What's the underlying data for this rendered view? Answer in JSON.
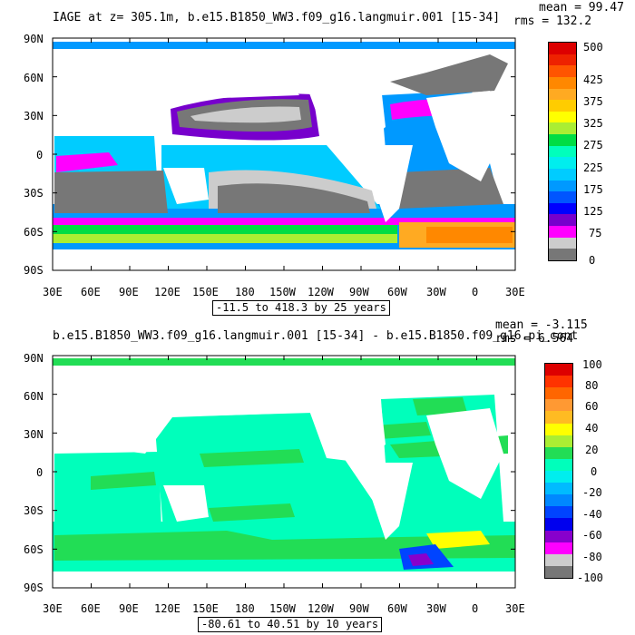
{
  "panel1": {
    "title": "IAGE at z= 305.1m, b.e15.B1850_WW3.f09_g16.langmuir.001 [15-34]",
    "mean_text": "mean = 99.47",
    "rms_text": "rms = 132.2",
    "range_text": "-11.5 to 418.3 by 25 years",
    "lat_labels": [
      "90N",
      "60N",
      "30N",
      "0",
      "30S",
      "60S",
      "90S"
    ],
    "lon_labels": [
      "30E",
      "60E",
      "90E",
      "120E",
      "150E",
      "180",
      "150W",
      "120W",
      "90W",
      "60W",
      "30W",
      "0",
      "30E"
    ],
    "colorbar": {
      "labels": [
        "500",
        "425",
        "375",
        "325",
        "275",
        "225",
        "175",
        "125",
        "75",
        "0"
      ],
      "colors": [
        "#dd0000",
        "#ee2200",
        "#ff5500",
        "#ff8800",
        "#ffaa22",
        "#ffcc00",
        "#ffff00",
        "#aaee33",
        "#00dd44",
        "#00ffbb",
        "#00eeee",
        "#00ccff",
        "#0099ff",
        "#0055ff",
        "#0000ff",
        "#7700cc",
        "#ff00ff",
        "#cccccc",
        "#777777"
      ]
    }
  },
  "panel2": {
    "title": "b.e15.B1850_WW3.f09_g16.langmuir.001 [15-34] - b.e15.B1850.f09_g16.pi_cont",
    "mean_text": "mean = -3.115",
    "rms_text": "rms = 6.564",
    "range_text": "-80.61 to 40.51 by 10 years",
    "lat_labels": [
      "90N",
      "60N",
      "30N",
      "0",
      "30S",
      "60S",
      "90S"
    ],
    "lon_labels": [
      "30E",
      "60E",
      "90E",
      "120E",
      "150E",
      "180",
      "150W",
      "120W",
      "90W",
      "60W",
      "30W",
      "0",
      "30E"
    ],
    "colorbar": {
      "labels": [
        "100",
        "80",
        "60",
        "40",
        "20",
        "0",
        "-20",
        "-40",
        "-60",
        "-80",
        "-100"
      ],
      "colors": [
        "#dd0000",
        "#ff3300",
        "#ff6600",
        "#ff9933",
        "#ffbb22",
        "#ffff00",
        "#aaee33",
        "#22dd55",
        "#00ffbb",
        "#00eeee",
        "#00bbff",
        "#0088ff",
        "#0044ff",
        "#0000ee",
        "#8800cc",
        "#ff00ff",
        "#cccccc",
        "#777777"
      ]
    }
  }
}
